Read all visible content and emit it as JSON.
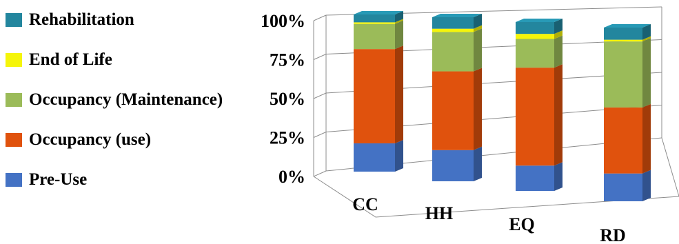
{
  "chart_data": {
    "type": "bar",
    "stacked": true,
    "three_d": true,
    "percent_stacked": true,
    "categories": [
      "CC",
      "HH",
      "EQ",
      "RD"
    ],
    "series": [
      {
        "name": "Pre-Use",
        "color": "#4472C4",
        "values": [
          18,
          19,
          15,
          16
        ]
      },
      {
        "name": "Occupancy (use)",
        "color": "#E0520D",
        "values": [
          60,
          48,
          58,
          38
        ]
      },
      {
        "name": "Occupancy (Maintenance)",
        "color": "#9BBB59",
        "values": [
          16,
          24,
          17,
          38
        ]
      },
      {
        "name": "End of Life",
        "color": "#F5F50A",
        "values": [
          1,
          2,
          3,
          1
        ]
      },
      {
        "name": "Rehabilitation",
        "color": "#23869E",
        "values": [
          5,
          7,
          7,
          7
        ]
      }
    ],
    "yticks": [
      "0%",
      "25%",
      "50%",
      "75%",
      "100%"
    ],
    "ylim": [
      0,
      100
    ],
    "grid": true,
    "legend_position": "left"
  }
}
